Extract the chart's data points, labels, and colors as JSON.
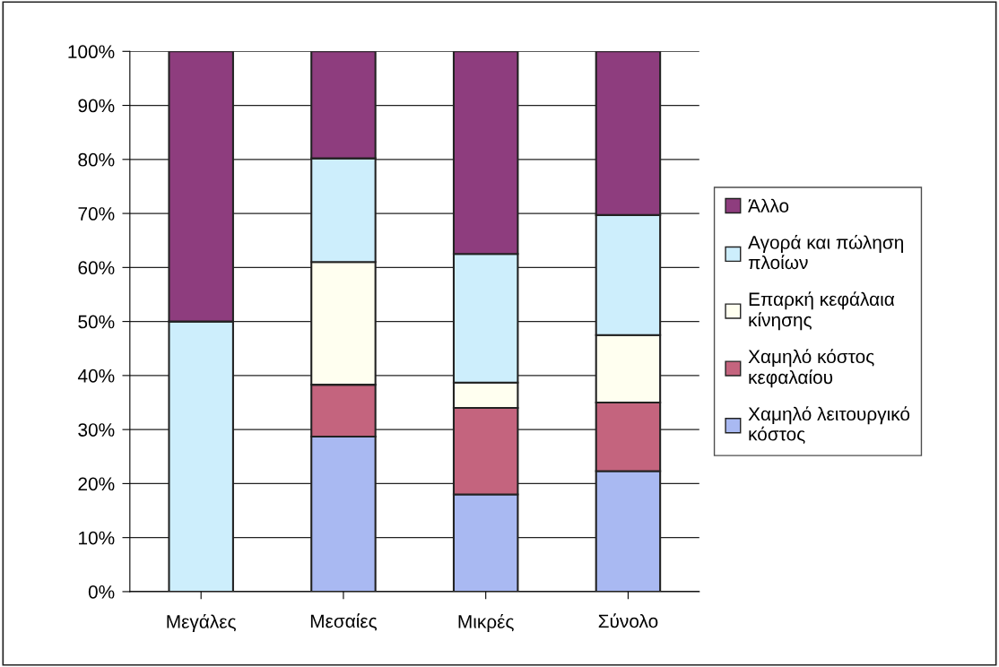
{
  "chart_data": {
    "type": "bar",
    "stacked": true,
    "categories": [
      "Μεγάλες",
      "Μεσαίες",
      "Μικρές",
      "Σύνολο"
    ],
    "series": [
      {
        "name": "Χαμηλό λειτουργικό\nκόστος",
        "color": "#a9b9f2",
        "values": [
          0,
          28.7,
          18,
          22.3
        ]
      },
      {
        "name": "Χαμηλό κόστος\nκεφαλαίου",
        "color": "#c4647e",
        "values": [
          0,
          9.6,
          16,
          12.7
        ]
      },
      {
        "name": "Επαρκή κεφάλαια\nκίνησης",
        "color": "#fffff0",
        "values": [
          0,
          22.7,
          4.7,
          12.5
        ]
      },
      {
        "name": "Αγορά και πώληση\nπλοίων",
        "color": "#cdeefc",
        "values": [
          50,
          19.2,
          23.8,
          22.2
        ]
      },
      {
        "name": "Άλλο",
        "color": "#8e3d7e",
        "values": [
          50,
          19.8,
          37.5,
          30.3
        ]
      }
    ],
    "ylim": [
      0,
      100
    ],
    "yticks": [
      {
        "value": 0,
        "label": "0%"
      },
      {
        "value": 10,
        "label": "10%"
      },
      {
        "value": 20,
        "label": "20%"
      },
      {
        "value": 30,
        "label": "30%"
      },
      {
        "value": 40,
        "label": "40%"
      },
      {
        "value": 50,
        "label": "50%"
      },
      {
        "value": 60,
        "label": "60%"
      },
      {
        "value": 70,
        "label": "70%"
      },
      {
        "value": 80,
        "label": "80%"
      },
      {
        "value": 90,
        "label": "90%"
      },
      {
        "value": 100,
        "label": "100%"
      }
    ],
    "grid": "y",
    "legend": "right"
  }
}
